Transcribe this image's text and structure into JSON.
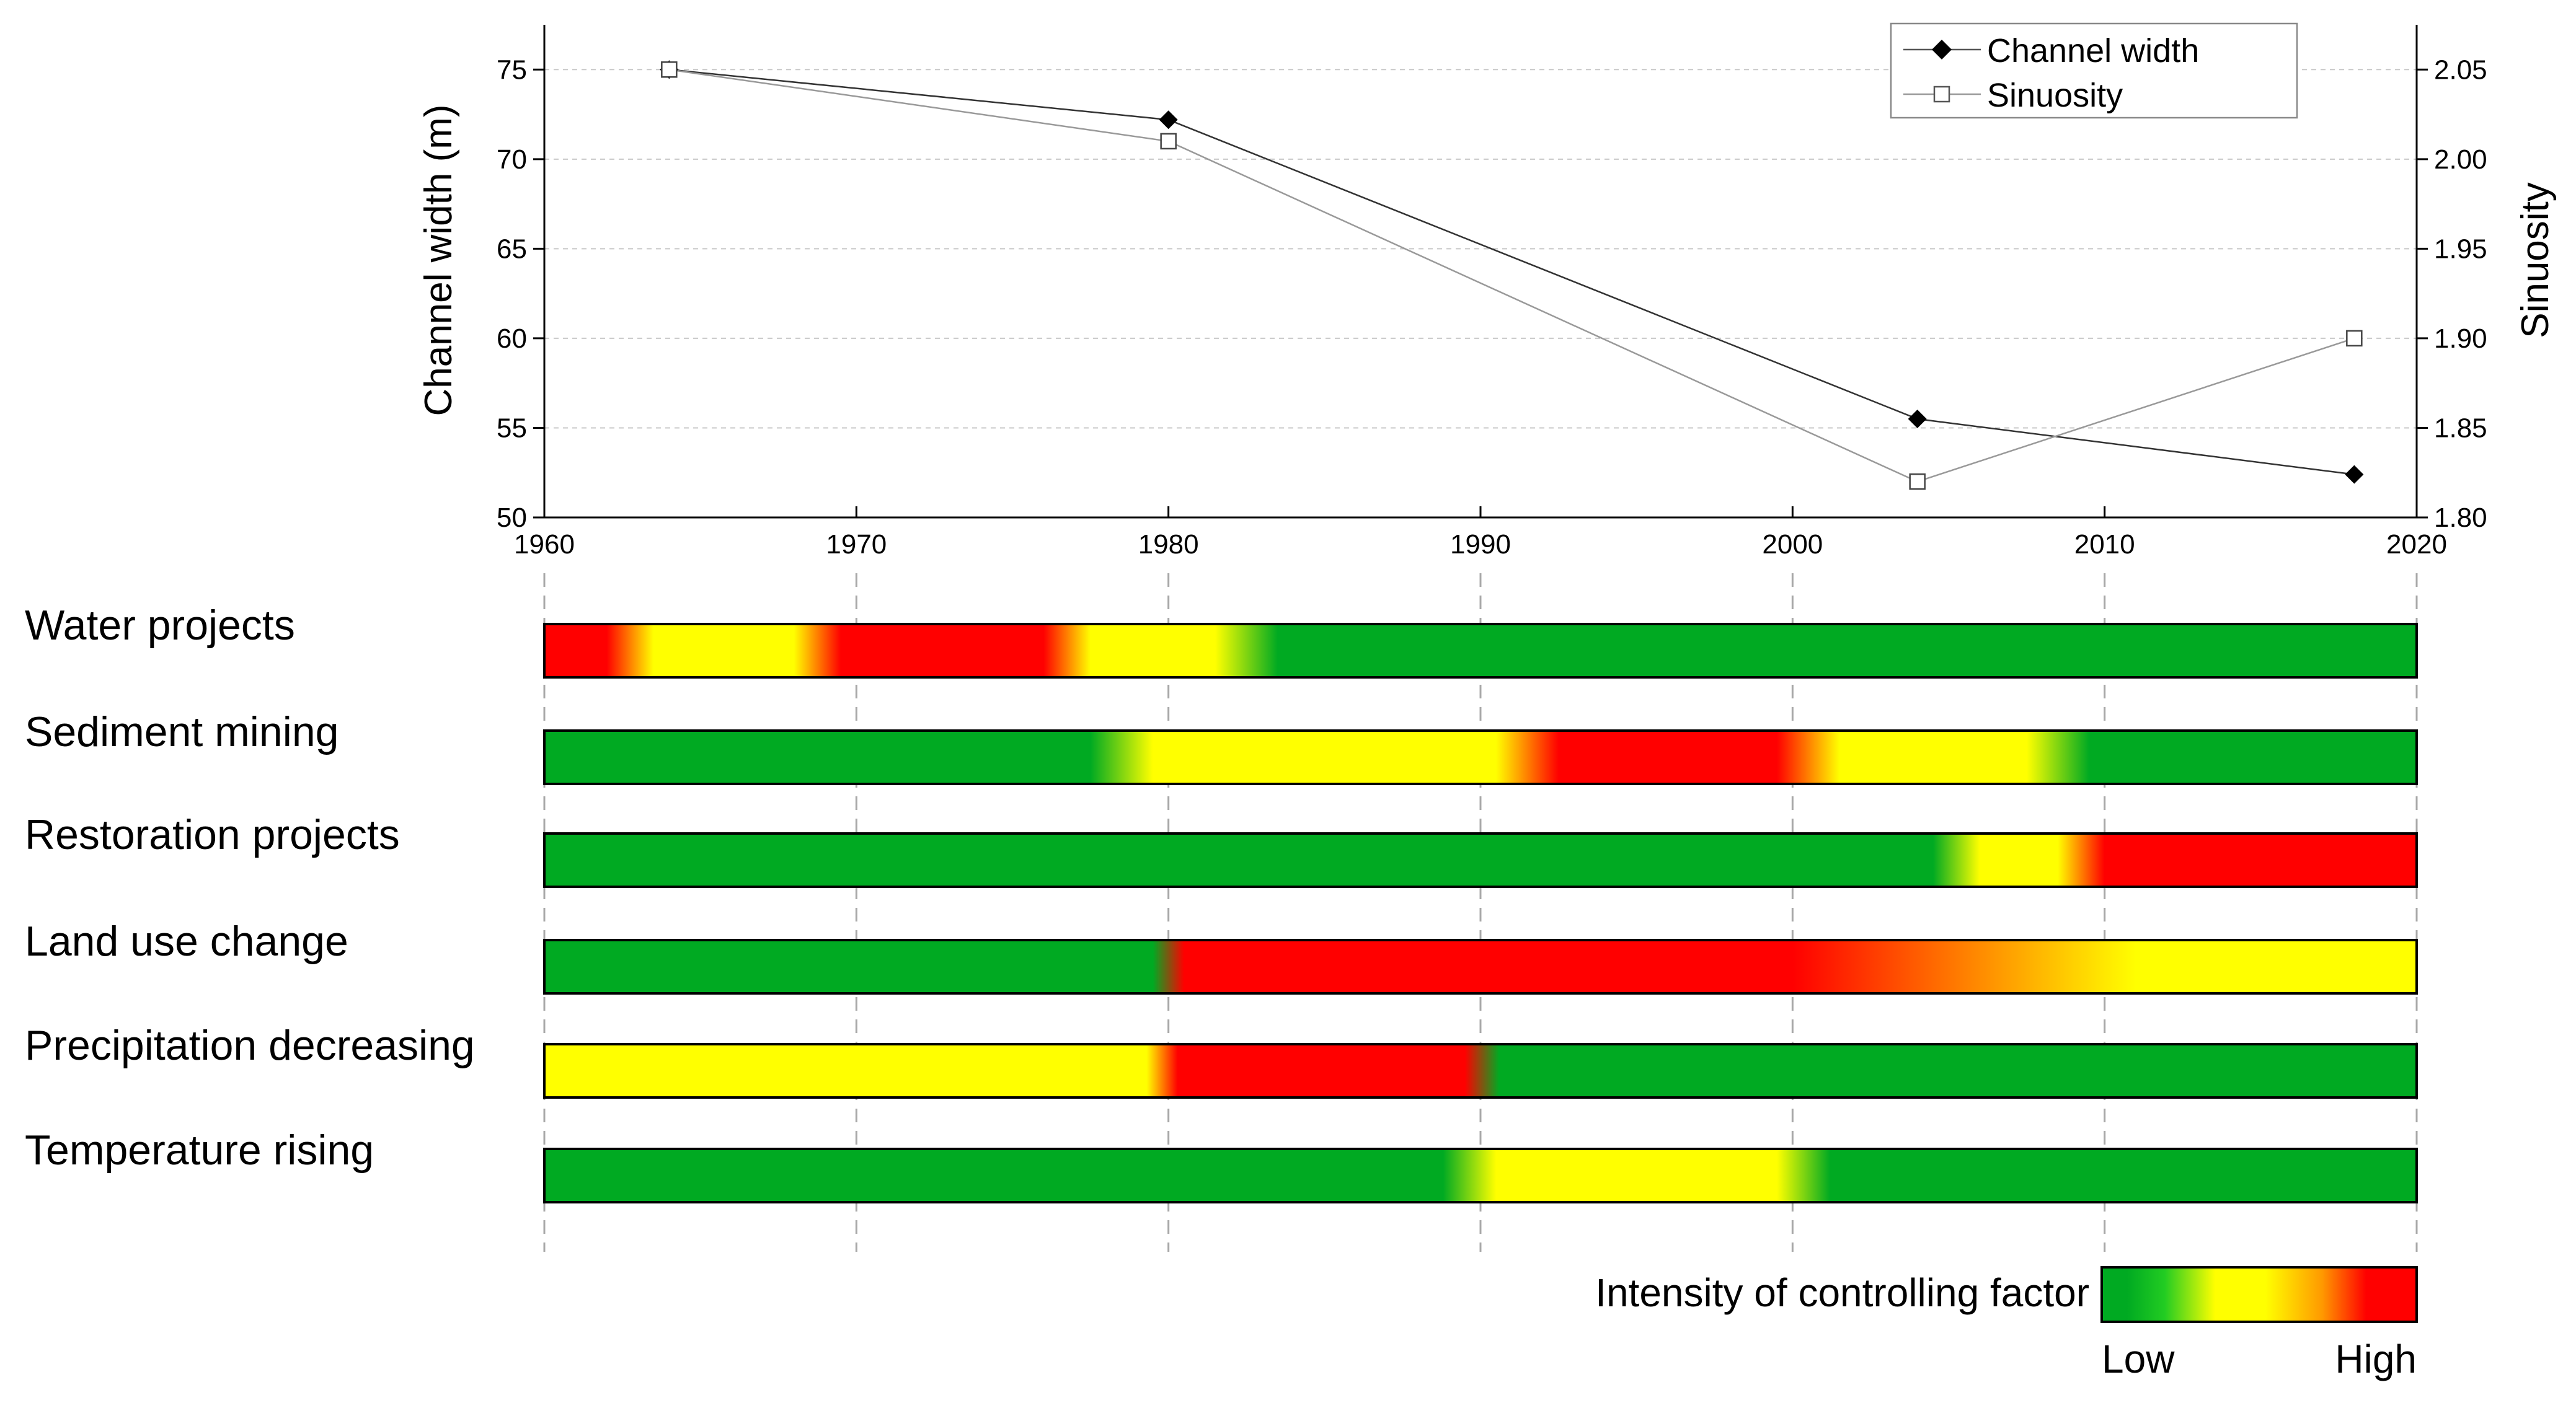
{
  "chart_data": {
    "type": "line",
    "x_axis": {
      "label": "",
      "range": [
        1960,
        2020
      ],
      "ticks": [
        1960,
        1970,
        1980,
        1990,
        2000,
        2010,
        2020
      ]
    },
    "y_left": {
      "label": "Channel width (m)",
      "range": [
        50,
        77.5
      ],
      "ticks": [
        50,
        55,
        60,
        65,
        70,
        75
      ]
    },
    "y_right": {
      "label": "Sinuosity",
      "range": [
        1.8,
        2.075
      ],
      "ticks": [
        "1.80",
        "1.85",
        "1.90",
        "1.95",
        "2.00",
        "2.05"
      ]
    },
    "grid": "horizontal dashed",
    "legend": {
      "position": "top-right"
    },
    "series": [
      {
        "name": "Channel width",
        "axis": "left",
        "marker": "filled-diamond",
        "color": "#000000",
        "x": [
          1964,
          1980,
          2004,
          2018
        ],
        "values": [
          75,
          72.2,
          55.5,
          52.4
        ]
      },
      {
        "name": "Sinuosity",
        "axis": "right",
        "marker": "open-square",
        "color": "#808080",
        "x": [
          1964,
          1980,
          2004,
          2018
        ],
        "values": [
          2.05,
          2.01,
          1.82,
          1.9
        ]
      }
    ]
  },
  "factors": {
    "items": [
      {
        "label": "Water projects",
        "stops": [
          [
            1960,
            "red"
          ],
          [
            1962,
            "red"
          ],
          [
            1963.5,
            "yellow"
          ],
          [
            1968,
            "yellow"
          ],
          [
            1969.5,
            "red"
          ],
          [
            1976,
            "red"
          ],
          [
            1977.5,
            "yellow"
          ],
          [
            1981.5,
            "yellow"
          ],
          [
            1983.5,
            "green"
          ],
          [
            2020,
            "green"
          ]
        ]
      },
      {
        "label": "Sediment mining",
        "stops": [
          [
            1960,
            "green"
          ],
          [
            1977.5,
            "green"
          ],
          [
            1979.5,
            "yellow"
          ],
          [
            1990.5,
            "yellow"
          ],
          [
            1992.5,
            "red"
          ],
          [
            1999.5,
            "red"
          ],
          [
            2001.5,
            "yellow"
          ],
          [
            2007.5,
            "yellow"
          ],
          [
            2009.5,
            "green"
          ],
          [
            2020,
            "green"
          ]
        ]
      },
      {
        "label": "Restoration projects",
        "stops": [
          [
            1960,
            "green"
          ],
          [
            2004.5,
            "green"
          ],
          [
            2006,
            "yellow"
          ],
          [
            2008.5,
            "yellow"
          ],
          [
            2010,
            "red"
          ],
          [
            2020,
            "red"
          ]
        ]
      },
      {
        "label": "Land use change",
        "stops": [
          [
            1960,
            "green"
          ],
          [
            1979.5,
            "green"
          ],
          [
            1980.5,
            "red"
          ],
          [
            2000,
            "red"
          ],
          [
            2011,
            "yellow"
          ],
          [
            2020,
            "yellow"
          ]
        ]
      },
      {
        "label": "Precipitation decreasing",
        "stops": [
          [
            1960,
            "yellow"
          ],
          [
            1979.3,
            "yellow"
          ],
          [
            1980.3,
            "red"
          ],
          [
            1989.5,
            "red"
          ],
          [
            1990.6,
            "green"
          ],
          [
            2020,
            "green"
          ]
        ]
      },
      {
        "label": "Temperature rising",
        "stops": [
          [
            1960,
            "green"
          ],
          [
            1988.8,
            "green"
          ],
          [
            1990.5,
            "yellow"
          ],
          [
            1999.5,
            "yellow"
          ],
          [
            2001.2,
            "green"
          ],
          [
            2020,
            "green"
          ]
        ]
      }
    ],
    "colors": {
      "green": "#00aa22",
      "yellow": "#ffff00",
      "red": "#ff0000"
    }
  },
  "intensity_legend": {
    "label": "Intensity of controlling factor",
    "low": "Low",
    "high": "High"
  }
}
